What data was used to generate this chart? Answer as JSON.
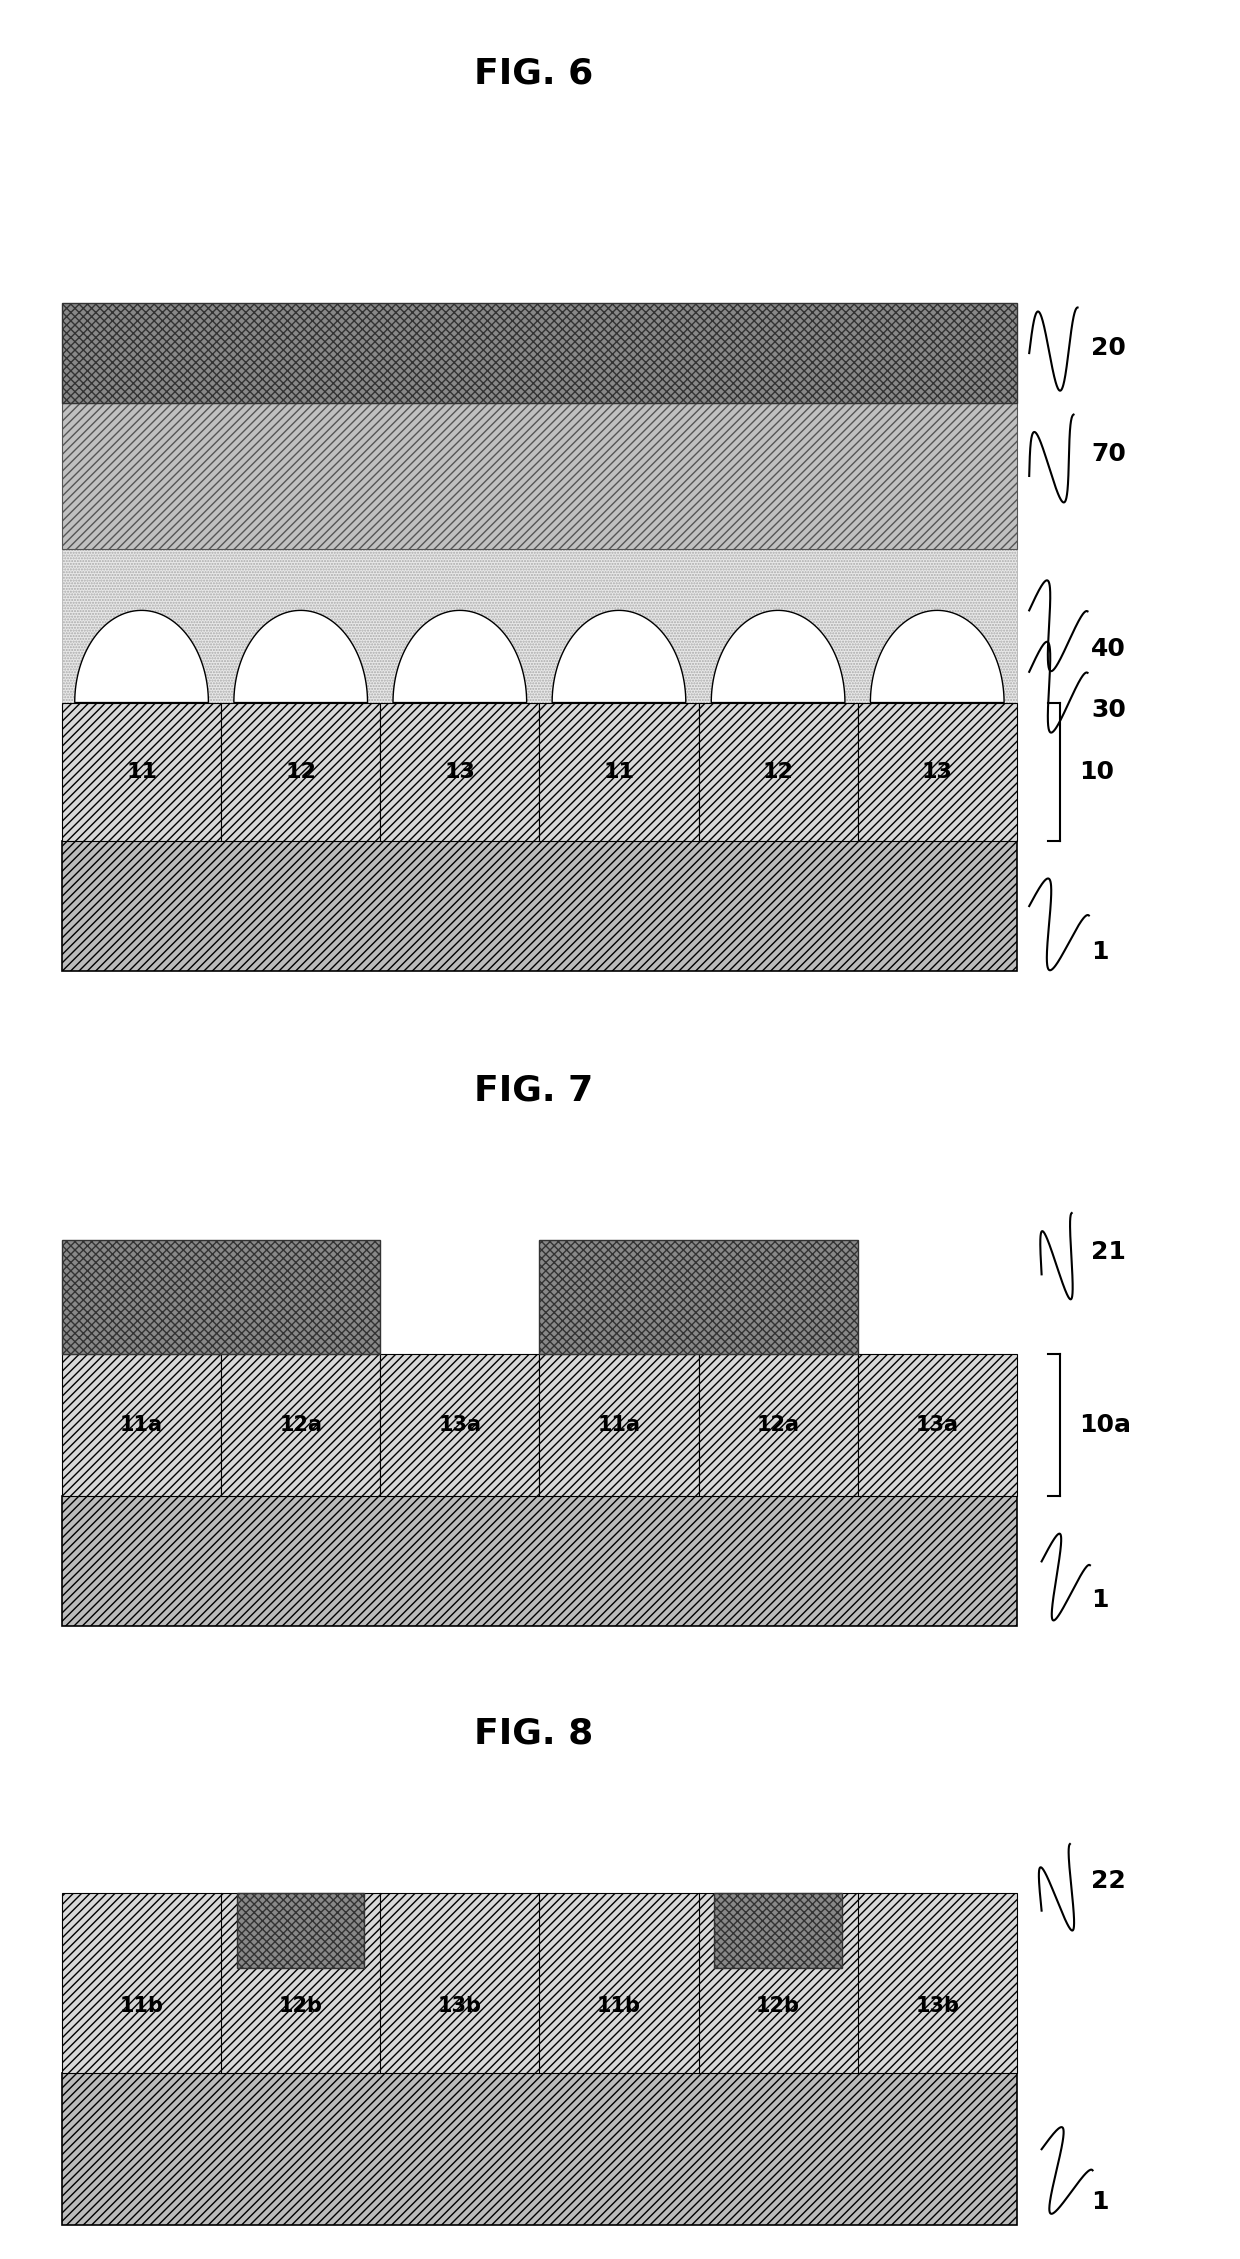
{
  "fig_title_6": "FIG. 6",
  "fig_title_7": "FIG. 7",
  "fig_title_8": "FIG. 8",
  "bg_color": "#ffffff",
  "cell_labels_6": [
    "11",
    "12",
    "13",
    "11",
    "12",
    "13"
  ],
  "cell_labels_7": [
    "11a",
    "12a",
    "13a",
    "11a",
    "12a",
    "13a"
  ],
  "cell_labels_8": [
    "11b",
    "12b",
    "13b",
    "11b",
    "12b",
    "13b"
  ],
  "title_fontsize": 26,
  "label_fontsize": 16,
  "annot_fontsize": 18
}
